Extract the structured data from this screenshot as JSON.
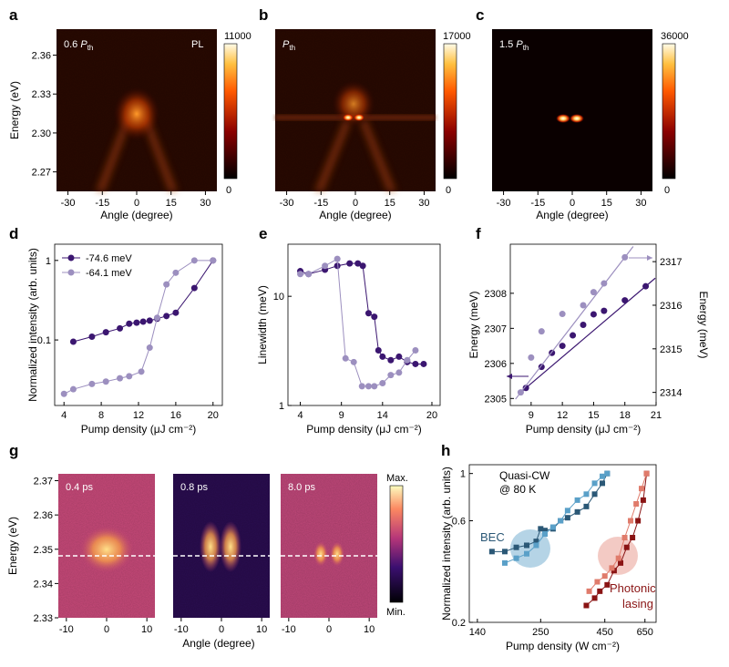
{
  "panels": {
    "a": {
      "letter": "a",
      "label": "0.6",
      "sub": "th",
      "tag": "PL",
      "cmax": "11000",
      "cmin": "0"
    },
    "b": {
      "letter": "b",
      "sub": "th",
      "cmax": "17000",
      "cmin": "0"
    },
    "c": {
      "letter": "c",
      "label": "1.5",
      "sub": "th",
      "cmax": "36000",
      "cmin": "0"
    },
    "g": {
      "letter": "g",
      "times": [
        "0.4 ps",
        "0.8 ps",
        "8.0 ps"
      ],
      "cmax": "Max.",
      "cmin": "Min."
    },
    "h": {
      "letter": "h",
      "note1": "Quasi-CW",
      "note2": "@ 80 K",
      "bec": "BEC",
      "lasing1": "Photonic",
      "lasing2": "lasing"
    }
  },
  "colors": {
    "dark_purple": "#3b1670",
    "light_purple": "#9c8fbf",
    "blue_dark": "#2b5876",
    "blue_light": "#5aa0c8",
    "red_dark": "#8a1414",
    "red_light": "#e07b6b"
  },
  "chart_data": [
    {
      "panel": "a",
      "type": "heatmap",
      "xlabel": "Angle (degree)",
      "ylabel": "Energy (eV)",
      "xticks": [
        "-30",
        "-15",
        "0",
        "15",
        "30"
      ],
      "yticks": [
        "2.36",
        "2.33",
        "2.30",
        "2.27"
      ],
      "xlim": [
        -35,
        35
      ],
      "ylim": [
        2.255,
        2.38
      ]
    },
    {
      "panel": "b",
      "type": "heatmap",
      "xlabel": "Angle (degree)",
      "xticks": [
        "-30",
        "-15",
        "0",
        "15",
        "30"
      ],
      "xlim": [
        -35,
        35
      ],
      "ylim": [
        2.255,
        2.38
      ]
    },
    {
      "panel": "c",
      "type": "heatmap",
      "xlabel": "Angle (degree)",
      "xticks": [
        "-30",
        "-15",
        "0",
        "15",
        "30"
      ],
      "xlim": [
        -35,
        35
      ],
      "ylim": [
        2.255,
        2.38
      ]
    },
    {
      "panel": "d",
      "type": "scatter",
      "yscale": "log",
      "xlabel": "Pump density (μJ cm⁻²)",
      "ylabel": "Normalized intensity (arb. units)",
      "xlim": [
        3,
        21
      ],
      "ylim": [
        0.015,
        1.6
      ],
      "xticks": [
        4,
        8,
        12,
        16,
        20
      ],
      "yticks": [
        {
          "v": 0.1,
          "t": "0.1"
        },
        {
          "v": 1,
          "t": "1"
        }
      ],
      "series": [
        {
          "name": "-74.6 meV",
          "color": "#3b1670",
          "x": [
            5,
            7,
            8.5,
            10,
            11,
            11.8,
            12.5,
            13.2,
            14,
            15,
            16,
            18,
            20
          ],
          "y": [
            0.095,
            0.11,
            0.125,
            0.14,
            0.16,
            0.165,
            0.17,
            0.175,
            0.185,
            0.2,
            0.22,
            0.45,
            1.0
          ]
        },
        {
          "name": "-64.1 meV",
          "color": "#9c8fbf",
          "x": [
            4,
            5,
            7,
            8.5,
            10,
            11,
            12.3,
            13.2,
            14,
            15,
            16,
            18,
            20
          ],
          "y": [
            0.021,
            0.024,
            0.028,
            0.03,
            0.033,
            0.035,
            0.04,
            0.08,
            0.19,
            0.5,
            0.7,
            1.0,
            1.0
          ]
        }
      ]
    },
    {
      "panel": "e",
      "type": "scatter",
      "yscale": "log",
      "xlabel": "Pump density (μJ cm⁻²)",
      "ylabel": "Linewidth (meV)",
      "xlim": [
        2.5,
        21
      ],
      "ylim": [
        1.0,
        30
      ],
      "xticks": [
        4,
        9,
        14,
        20
      ],
      "yticks": [
        {
          "v": 1,
          "t": "1"
        },
        {
          "v": 10,
          "t": "10"
        }
      ],
      "series": [
        {
          "color": "#3b1670",
          "x": [
            4,
            5,
            7,
            8.5,
            10,
            11,
            11.6,
            12.3,
            13,
            13.5,
            14,
            15,
            16,
            17,
            18,
            19
          ],
          "y": [
            17,
            16,
            17.5,
            19,
            20,
            20,
            19,
            7,
            6.5,
            3.2,
            2.8,
            2.6,
            2.8,
            2.5,
            2.4,
            2.4
          ]
        },
        {
          "color": "#9c8fbf",
          "x": [
            4,
            5,
            7,
            8.5,
            9.5,
            10.5,
            11.5,
            12.3,
            13,
            14,
            15,
            16,
            17,
            18
          ],
          "y": [
            16,
            16,
            19,
            22,
            2.7,
            2.5,
            1.5,
            1.5,
            1.5,
            1.6,
            1.9,
            2.0,
            2.6,
            3.2
          ]
        }
      ]
    },
    {
      "panel": "f",
      "type": "scatter",
      "xlabel": "Pump density (μJ cm⁻²)",
      "ylabel": "Energy (meV)",
      "y2label": "Energy (meV)",
      "xlim": [
        7,
        21
      ],
      "ylim": [
        2304.8,
        2309.4
      ],
      "y2lim": [
        2313.7,
        2317.4
      ],
      "xticks": [
        9,
        12,
        15,
        18,
        21
      ],
      "yticks": [
        2305,
        2306,
        2307,
        2308
      ],
      "y2ticks": [
        2314,
        2315,
        2316,
        2317
      ],
      "series": [
        {
          "color": "#3b1670",
          "axis": "left",
          "x": [
            8.5,
            10,
            11,
            12,
            13,
            14,
            15,
            16,
            18,
            20
          ],
          "y": [
            2305.3,
            2305.9,
            2306.3,
            2306.5,
            2306.8,
            2307.1,
            2307.4,
            2307.5,
            2307.8,
            2308.2
          ]
        },
        {
          "color": "#9c8fbf",
          "axis": "right",
          "x": [
            8,
            9,
            10,
            12,
            14,
            15,
            16,
            18
          ],
          "y": [
            2314.0,
            2314.8,
            2315.4,
            2315.8,
            2316.0,
            2316.3,
            2316.5,
            2317.1
          ]
        }
      ]
    },
    {
      "panel": "g",
      "type": "heatmap",
      "xlabel": "Angle (degree)",
      "ylabel": "Energy (eV)",
      "xticks": [
        "-10",
        "0",
        "10"
      ],
      "yticks": [
        "2.37",
        "2.36",
        "2.35",
        "2.34",
        "2.33"
      ],
      "xlim": [
        -12,
        12
      ],
      "ylim": [
        2.33,
        2.372
      ],
      "dash_energy": 2.348
    },
    {
      "panel": "h",
      "type": "line",
      "xscale": "log",
      "yscale": "log",
      "xlabel": "Pump density (W cm⁻²)",
      "ylabel": "Normalized intensity (arb. units)",
      "xlim": [
        130,
        720
      ],
      "ylim": [
        0.2,
        1.1
      ],
      "xticks": [
        {
          "v": 140,
          "t": "140"
        },
        {
          "v": 250,
          "t": "250"
        },
        {
          "v": 450,
          "t": "450"
        },
        {
          "v": 650,
          "t": "650"
        }
      ],
      "yticks": [
        {
          "v": 0.2,
          "t": "0.2"
        },
        {
          "v": 0.6,
          "t": "0.6"
        },
        {
          "v": 1,
          "t": "1"
        }
      ],
      "series": [
        {
          "color": "#2b5876",
          "x": [
            160,
            180,
            200,
            220,
            240,
            250,
            260,
            280,
            300,
            320,
            350,
            380,
            410,
            440,
            460
          ],
          "y": [
            0.43,
            0.43,
            0.45,
            0.46,
            0.48,
            0.55,
            0.54,
            0.55,
            0.6,
            0.62,
            0.66,
            0.7,
            0.8,
            0.9,
            1.0
          ]
        },
        {
          "color": "#5aa0c8",
          "x": [
            180,
            200,
            220,
            240,
            260,
            280,
            300,
            320,
            350,
            380,
            410,
            440,
            460
          ],
          "y": [
            0.38,
            0.4,
            0.42,
            0.46,
            0.52,
            0.56,
            0.6,
            0.67,
            0.75,
            0.8,
            0.9,
            0.97,
            1.0
          ]
        },
        {
          "color": "#8a1414",
          "x": [
            380,
            410,
            430,
            460,
            490,
            520,
            550,
            580,
            610,
            640,
            660
          ],
          "y": [
            0.24,
            0.26,
            0.28,
            0.3,
            0.35,
            0.38,
            0.45,
            0.5,
            0.6,
            0.75,
            1.0
          ]
        },
        {
          "color": "#e07b6b",
          "x": [
            390,
            420,
            450,
            480,
            510,
            540,
            570,
            600,
            630,
            660
          ],
          "y": [
            0.28,
            0.31,
            0.33,
            0.36,
            0.4,
            0.5,
            0.6,
            0.72,
            0.85,
            1.0
          ]
        }
      ]
    }
  ]
}
